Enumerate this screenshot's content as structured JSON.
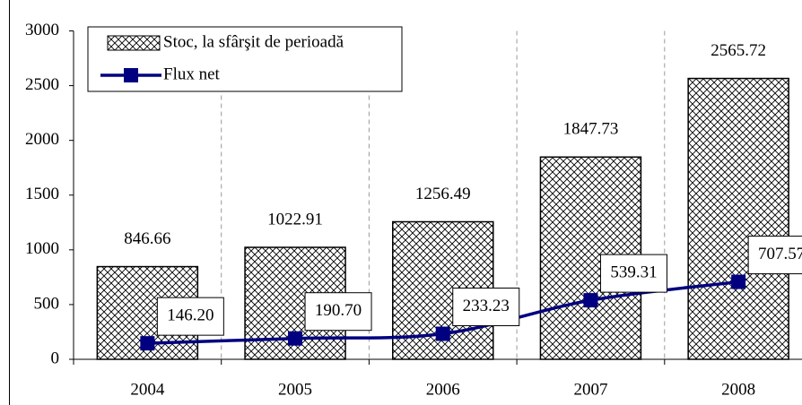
{
  "chart_data": {
    "type": "bar_line",
    "categories": [
      "2004",
      "2005",
      "2006",
      "2007",
      "2008"
    ],
    "series": [
      {
        "name": "Stoc, la sfârşit de perioadă",
        "type": "bar",
        "color": "#000000",
        "values": [
          846.66,
          1022.91,
          1256.49,
          1847.73,
          2565.72
        ]
      },
      {
        "name": "Flux net",
        "type": "line",
        "color": "#000080",
        "values": [
          146.2,
          190.7,
          233.23,
          539.31,
          707.57
        ],
        "value_labels": [
          "146.20",
          "190.70",
          "233.23",
          "539.31",
          "707.57"
        ]
      }
    ],
    "ylim": [
      0,
      3000
    ],
    "yticks": [
      0,
      500,
      1000,
      1500,
      2000,
      2500,
      3000
    ],
    "grid": "x-dashed",
    "legend": "top-left"
  }
}
